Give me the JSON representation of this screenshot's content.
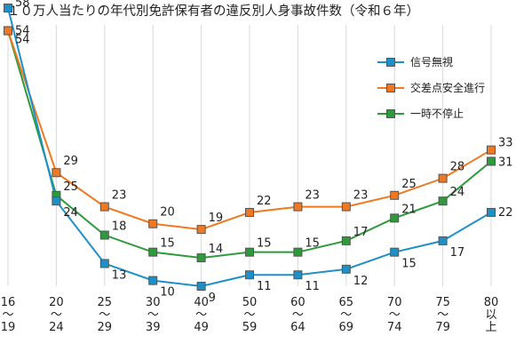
{
  "chart_data": {
    "type": "line",
    "title": "１０万人当たりの年代別免許保有者の違反別人身事故件数（令和６年）",
    "categories": [
      [
        "16",
        "～",
        "19"
      ],
      [
        "20",
        "～",
        "24"
      ],
      [
        "25",
        "～",
        "29"
      ],
      [
        "30",
        "～",
        "39"
      ],
      [
        "40",
        "～",
        "49"
      ],
      [
        "50",
        "～",
        "59"
      ],
      [
        "60",
        "～",
        "64"
      ],
      [
        "65",
        "～",
        "69"
      ],
      [
        "70",
        "～",
        "74"
      ],
      [
        "75",
        "～",
        "79"
      ],
      [
        "80",
        "以",
        "上"
      ]
    ],
    "series": [
      {
        "name": "信号無視",
        "color": "#1e90c8",
        "values": [
          58,
          24,
          13,
          10,
          9,
          11,
          11,
          12,
          15,
          17,
          22
        ]
      },
      {
        "name": "交差点安全進行",
        "color": "#f07820",
        "values": [
          54,
          29,
          23,
          20,
          19,
          22,
          23,
          23,
          25,
          28,
          33
        ]
      },
      {
        "name": "一時不停止",
        "color": "#2e9a3c",
        "values": [
          54,
          25,
          18,
          15,
          14,
          15,
          15,
          17,
          21,
          24,
          31
        ]
      }
    ],
    "grid": "vertical",
    "legend_position": "top-right"
  }
}
